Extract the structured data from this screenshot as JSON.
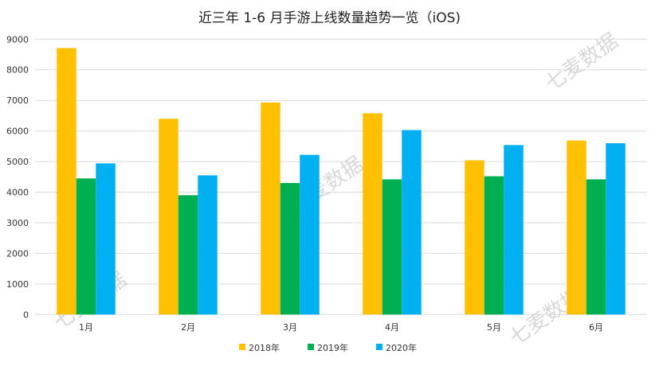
{
  "chart_data": {
    "type": "bar",
    "title": "近三年 1-6 月手游上线数量趋势一览（iOS)",
    "categories": [
      "1月",
      "2月",
      "3月",
      "4月",
      "5月",
      "6月"
    ],
    "series": [
      {
        "name": "2018年",
        "color": "#FFC000",
        "values": [
          8710,
          6400,
          6930,
          6580,
          5040,
          5690
        ]
      },
      {
        "name": "2019年",
        "color": "#00B050",
        "values": [
          4450,
          3900,
          4300,
          4420,
          4520,
          4420
        ]
      },
      {
        "name": "2020年",
        "color": "#00B0F0",
        "values": [
          4940,
          4550,
          5220,
          6030,
          5540,
          5600
        ]
      }
    ],
    "ylim": [
      0,
      9000
    ],
    "yticks": [
      0,
      1000,
      2000,
      3000,
      4000,
      5000,
      6000,
      7000,
      8000,
      9000
    ],
    "grid": true,
    "legend_placement": "bottom",
    "watermark": "七麦数据"
  }
}
